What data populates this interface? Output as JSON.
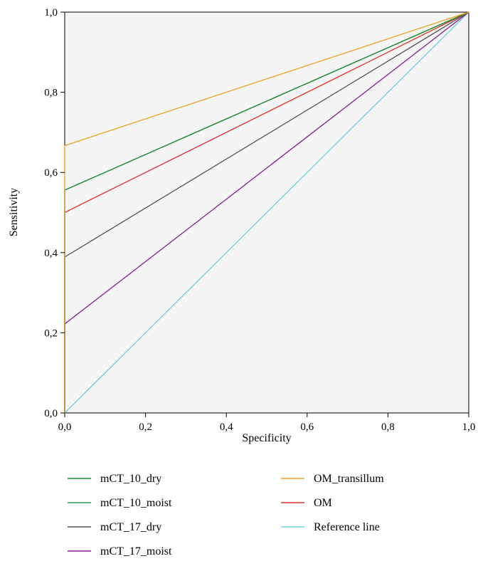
{
  "chart_data": {
    "type": "line",
    "title": "",
    "xlabel": "Specificity",
    "ylabel": "Sensitivity",
    "xlim": [
      0,
      1
    ],
    "ylim": [
      0,
      1
    ],
    "x_ticks": [
      "0,0",
      "0,2",
      "0,4",
      "0,6",
      "0,8",
      "1,0"
    ],
    "y_ticks": [
      "0,0",
      "0,2",
      "0,4",
      "0,6",
      "0,8",
      "1,0"
    ],
    "tick_values": [
      0,
      0.2,
      0.4,
      0.6,
      0.8,
      1.0
    ],
    "grid": false,
    "legend_position": "bottom",
    "series": [
      {
        "name": "mCT_10_dry",
        "color": "#1a8a2e",
        "points": [
          [
            0,
            0
          ],
          [
            0,
            0.556
          ],
          [
            1,
            1
          ]
        ]
      },
      {
        "name": "mCT_10_moist",
        "color": "#2e9a50",
        "points": [
          [
            0,
            0
          ],
          [
            0,
            0.556
          ],
          [
            1,
            1
          ]
        ]
      },
      {
        "name": "mCT_17_dry",
        "color": "#555555",
        "points": [
          [
            0,
            0
          ],
          [
            0,
            0.389
          ],
          [
            1,
            1
          ]
        ]
      },
      {
        "name": "mCT_17_moist",
        "color": "#8b1a9a",
        "points": [
          [
            0,
            0
          ],
          [
            0,
            0.222
          ],
          [
            1,
            1
          ]
        ]
      },
      {
        "name": "OM_transillum",
        "color": "#f0a020",
        "points": [
          [
            0,
            0
          ],
          [
            0,
            0.667
          ],
          [
            1,
            1
          ]
        ]
      },
      {
        "name": "OM",
        "color": "#e03030",
        "points": [
          [
            0,
            0
          ],
          [
            0,
            0.5
          ],
          [
            1,
            1
          ]
        ]
      },
      {
        "name": "Reference line",
        "color": "#6cd0e0",
        "points": [
          [
            0,
            0
          ],
          [
            1,
            1
          ]
        ]
      }
    ]
  }
}
